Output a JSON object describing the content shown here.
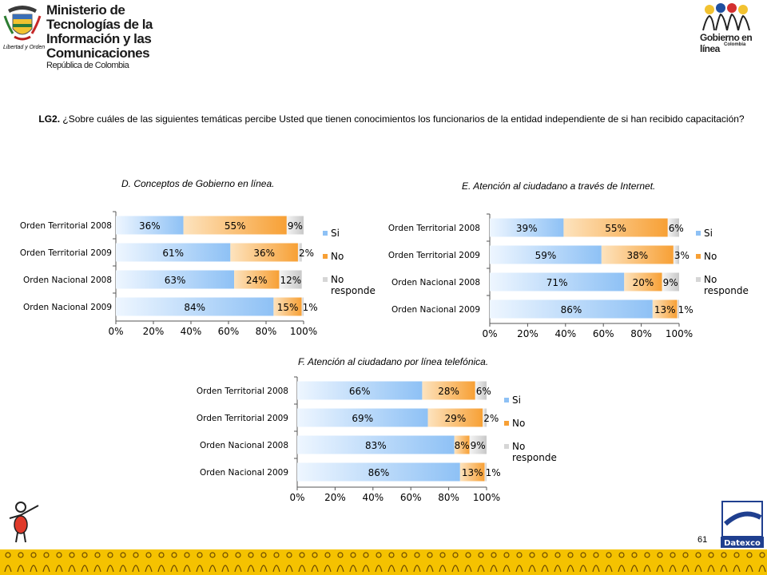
{
  "header": {
    "ministry_line1": "Ministerio de Tecnologías de la",
    "ministry_line2": "Información y las Comunicaciones",
    "ministry_line3": "República de Colombia",
    "motto": "Libertad y Orden",
    "gel_logo": "Gobierno en línea",
    "gel_sub": "Colombia"
  },
  "question": {
    "code": "LG2.",
    "text": " ¿Sobre cuáles de las siguientes temáticas percibe Usted que tienen conocimientos los funcionarios de la entidad independiente de si han recibido capacitación?"
  },
  "footer": {
    "page_number": "61",
    "brand": "Datexco"
  },
  "colors": {
    "si": "#8ec1f5",
    "no": "#f7a035",
    "nr": "#d6d6d6",
    "footer": "#f5c200"
  },
  "chart_data": [
    {
      "type": "bar",
      "orientation": "horizontal",
      "stacked": true,
      "title": "D. Conceptos de Gobierno en línea.",
      "categories": [
        "Orden Territorial 2008",
        "Orden Territorial 2009",
        "Orden Nacional 2008",
        "Orden Nacional 2009"
      ],
      "series": [
        {
          "name": "Si",
          "values": [
            36,
            61,
            63,
            84
          ]
        },
        {
          "name": "No",
          "values": [
            55,
            36,
            24,
            15
          ]
        },
        {
          "name": "No responde",
          "values": [
            9,
            2,
            12,
            1
          ]
        }
      ],
      "xticks": [
        "0%",
        "20%",
        "40%",
        "60%",
        "80%",
        "100%"
      ],
      "xlim": [
        0,
        100
      ],
      "legend": "right"
    },
    {
      "type": "bar",
      "orientation": "horizontal",
      "stacked": true,
      "title": "E. Atención al ciudadano a través de Internet.",
      "categories": [
        "Orden Territorial 2008",
        "Orden Territorial 2009",
        "Orden Nacional 2008",
        "Orden Nacional 2009"
      ],
      "series": [
        {
          "name": "Si",
          "values": [
            39,
            59,
            71,
            86
          ]
        },
        {
          "name": "No",
          "values": [
            55,
            38,
            20,
            13
          ]
        },
        {
          "name": "No responde",
          "values": [
            6,
            3,
            9,
            1
          ]
        }
      ],
      "xticks": [
        "0%",
        "20%",
        "40%",
        "60%",
        "80%",
        "100%"
      ],
      "xlim": [
        0,
        100
      ],
      "legend": "right"
    },
    {
      "type": "bar",
      "orientation": "horizontal",
      "stacked": true,
      "title": "F. Atención al ciudadano por línea telefónica.",
      "categories": [
        "Orden Territorial 2008",
        "Orden Territorial 2009",
        "Orden Nacional 2008",
        "Orden Nacional 2009"
      ],
      "series": [
        {
          "name": "Si",
          "values": [
            66,
            69,
            83,
            86
          ]
        },
        {
          "name": "No",
          "values": [
            28,
            29,
            8,
            13
          ]
        },
        {
          "name": "No responde",
          "values": [
            6,
            2,
            9,
            1
          ]
        }
      ],
      "xticks": [
        "0%",
        "20%",
        "40%",
        "60%",
        "80%",
        "100%"
      ],
      "xlim": [
        0,
        100
      ],
      "legend": "right"
    }
  ]
}
